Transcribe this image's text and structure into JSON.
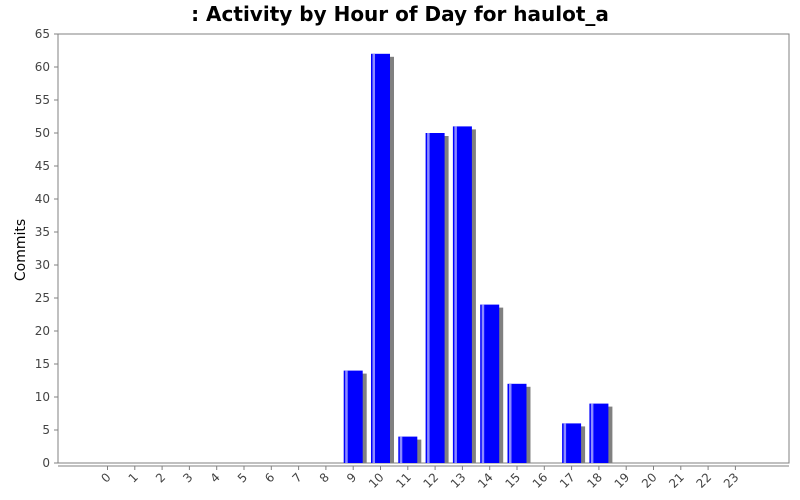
{
  "chart_data": {
    "type": "bar",
    "title": ": Activity by Hour of Day for haulot_a",
    "xlabel": "",
    "ylabel": "Commits",
    "categories": [
      "0",
      "1",
      "2",
      "3",
      "4",
      "5",
      "6",
      "7",
      "8",
      "9",
      "10",
      "11",
      "12",
      "13",
      "14",
      "15",
      "16",
      "17",
      "18",
      "19",
      "20",
      "21",
      "22",
      "23"
    ],
    "values": [
      0,
      0,
      0,
      0,
      0,
      0,
      0,
      0,
      0,
      14,
      62,
      4,
      50,
      51,
      24,
      12,
      0,
      6,
      9,
      0,
      0,
      0,
      0,
      0
    ],
    "ylim": [
      0,
      65
    ],
    "yticks": [
      0,
      5,
      10,
      15,
      20,
      25,
      30,
      35,
      40,
      45,
      50,
      55,
      60,
      65
    ],
    "grid": false,
    "legend": "none",
    "colors": {
      "bar": "#0000ff",
      "bar_highlight": "#8c8cff",
      "bar_shadow": "#808080",
      "axis": "#808080",
      "tick_text": "#444444"
    }
  }
}
